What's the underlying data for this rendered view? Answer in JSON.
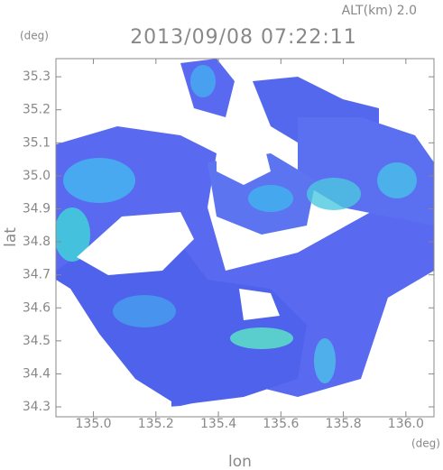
{
  "chart_data": {
    "type": "radar-map",
    "title": "2013/09/08 07:22:11",
    "altitude_label": "ALT(km) 2.0",
    "y_unit": "(deg)",
    "x_unit": "(deg)",
    "xlabel": "lon",
    "ylabel": "lat",
    "xlim": [
      134.88,
      136.09
    ],
    "ylim": [
      34.27,
      35.355
    ],
    "xticks": [
      {
        "value": 135,
        "label": "135.0"
      },
      135.2,
      135.4,
      135.6,
      135.8,
      {
        "value": 136,
        "label": "136.0"
      }
    ],
    "yticks": [
      35.3,
      35.2,
      35.1,
      {
        "value": 35,
        "label": "35.0"
      },
      34.9,
      34.8,
      34.7,
      34.6,
      34.5,
      34.4,
      34.3
    ]
  }
}
